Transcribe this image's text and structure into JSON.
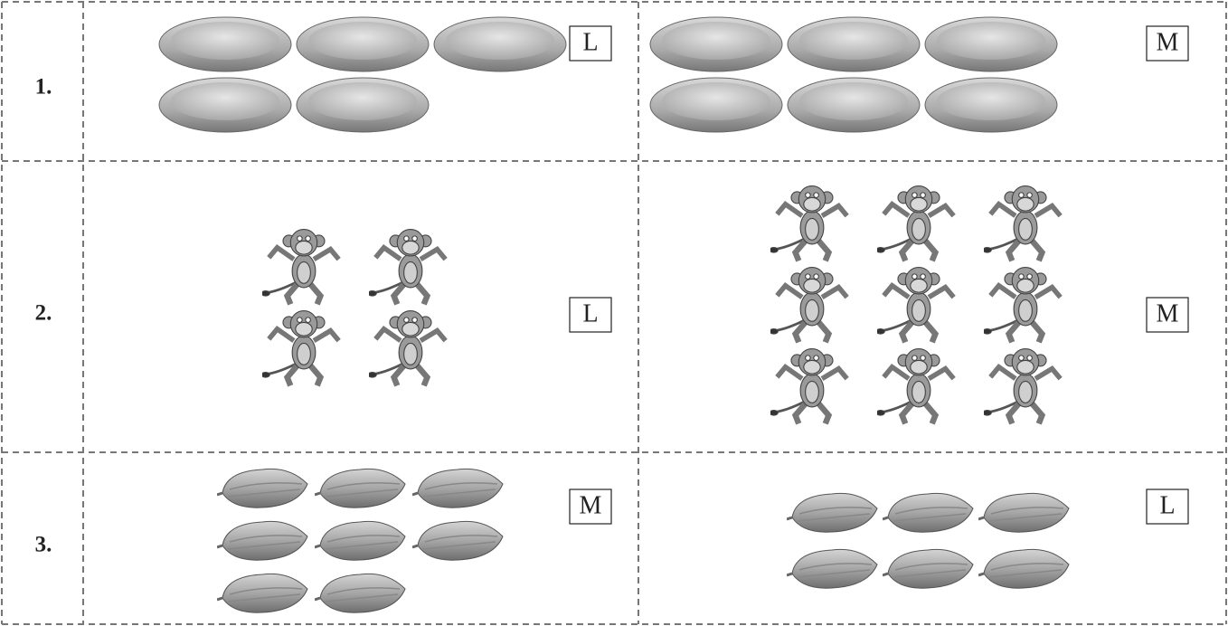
{
  "rows": [
    {
      "number": "1.",
      "cells": [
        {
          "count": 5,
          "label": "L"
        },
        {
          "count": 6,
          "label": "M"
        }
      ]
    },
    {
      "number": "2.",
      "cells": [
        {
          "count": 4,
          "label": "L"
        },
        {
          "count": 9,
          "label": "M"
        }
      ]
    },
    {
      "number": "3.",
      "cells": [
        {
          "count": 8,
          "label": "M"
        },
        {
          "count": 6,
          "label": "L"
        }
      ]
    }
  ]
}
